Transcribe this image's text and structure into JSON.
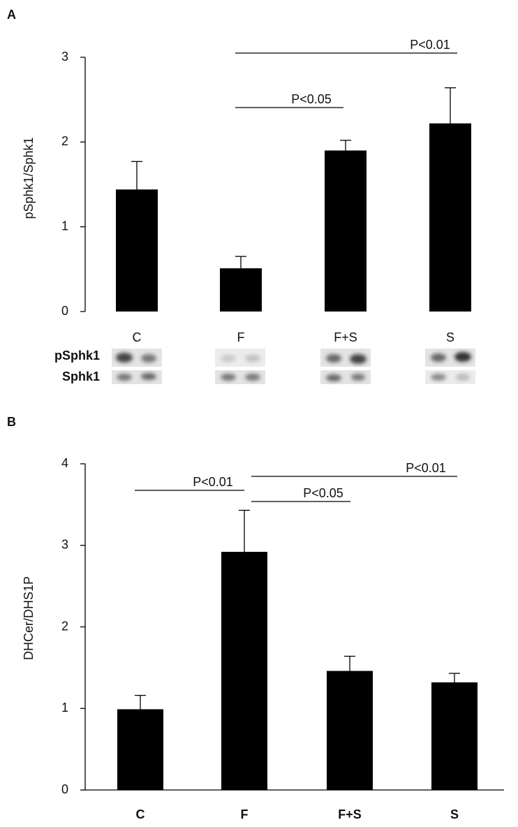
{
  "chart_data": [
    {
      "type": "bar",
      "panel_label": "A",
      "y_label": "pSphk1/Sphk1",
      "categories": [
        "C",
        "F",
        "F+S",
        "S"
      ],
      "values": [
        1.44,
        0.51,
        1.9,
        2.22
      ],
      "errors": [
        0.33,
        0.14,
        0.12,
        0.42
      ],
      "color": "#000000",
      "ylim": [
        0,
        3
      ],
      "yticks": [
        0,
        1,
        2,
        3
      ],
      "x_axis_line": false,
      "bold_categories": false,
      "annotations": [
        "P<0.01",
        "P<0.05"
      ],
      "blot_labels": [
        "pSphk1",
        "Sphk1"
      ]
    },
    {
      "type": "bar",
      "panel_label": "B",
      "y_label": "DHCer/DHS1P",
      "categories": [
        "C",
        "F",
        "F+S",
        "S"
      ],
      "values": [
        0.99,
        2.92,
        1.46,
        1.32
      ],
      "errors": [
        0.17,
        0.51,
        0.18,
        0.11
      ],
      "color": "#000000",
      "ylim": [
        0,
        4
      ],
      "yticks": [
        0,
        1,
        2,
        3,
        4
      ],
      "x_axis_line": true,
      "bold_categories": true,
      "annotations": [
        "P<0.01",
        "P<0.01",
        "P<0.05"
      ]
    }
  ]
}
